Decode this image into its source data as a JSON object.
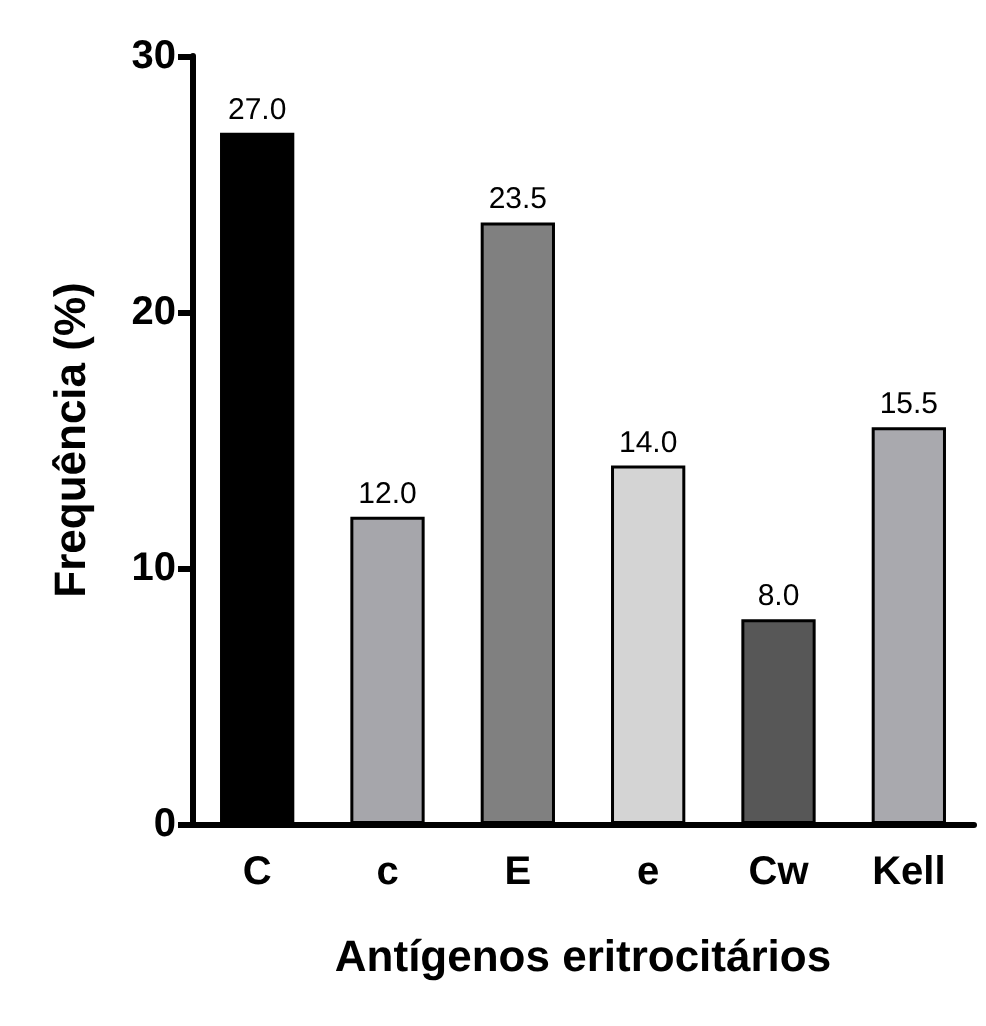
{
  "chart_data": {
    "type": "bar",
    "xlabel": "Antígenos eritrocitários",
    "ylabel": "Frequência (%)",
    "categories": [
      "C",
      "c",
      "E",
      "e",
      "Cw",
      "Kell"
    ],
    "values": [
      27.0,
      12.0,
      23.5,
      14.0,
      8.0,
      15.5
    ],
    "colors": [
      "#000000",
      "#a6a6ab",
      "#808080",
      "#d4d4d4",
      "#575757",
      "#a9a9ae"
    ],
    "value_labels": [
      "27.0",
      "12.0",
      "23.5",
      "14.0",
      "8.0",
      "15.5"
    ],
    "ylim": [
      0,
      30
    ],
    "yticks": [
      0,
      10,
      20,
      30
    ],
    "grid": false
  }
}
